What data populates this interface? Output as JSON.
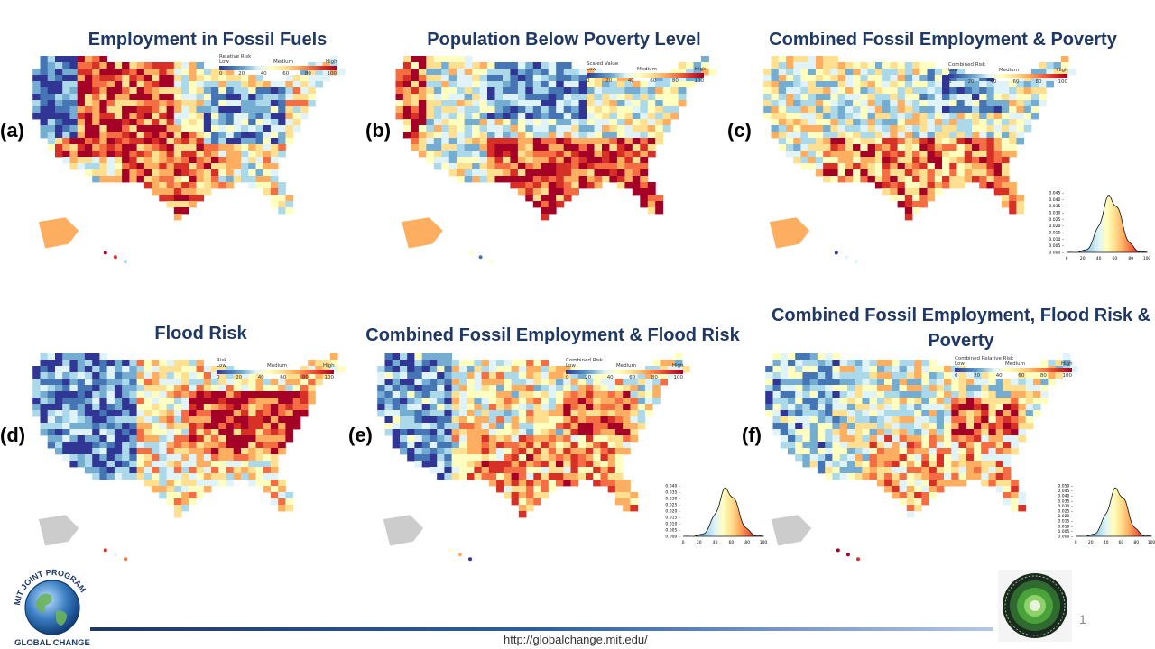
{
  "panels": [
    {
      "letter": "(a)",
      "title": "Employment in Fossil Fuels",
      "legend_title": "Relative Risk",
      "legend_low": "Low",
      "legend_medium": "Medium",
      "legend_high": "High",
      "has_density": false
    },
    {
      "letter": "(b)",
      "title": "Population Below Poverty Level",
      "legend_title": "Scaled Value",
      "legend_low": "Low",
      "legend_medium": "Medium",
      "legend_high": "High",
      "has_density": false
    },
    {
      "letter": "(c)",
      "title": "Combined Fossil Employment & Poverty",
      "legend_title": "Combined Risk",
      "legend_low": "Low",
      "legend_medium": "Medium",
      "legend_high": "High",
      "has_density": true
    },
    {
      "letter": "(d)",
      "title": "Flood Risk",
      "legend_title": "Risk",
      "legend_low": "Low",
      "legend_medium": "Medium",
      "legend_high": "High",
      "has_density": false
    },
    {
      "letter": "(e)",
      "title": "Combined Fossil Employment & Flood Risk",
      "legend_title": "Combined Risk",
      "legend_low": "Low",
      "legend_medium": "Medium",
      "legend_high": "High",
      "has_density": true
    },
    {
      "letter": "(f)",
      "title": "Combined Fossil Employment, Flood Risk & Poverty",
      "legend_title": "Combined Relative Risk",
      "legend_low": "Low",
      "legend_medium": "Medium",
      "legend_high": "High",
      "has_density": true
    }
  ],
  "legend_ticks": [
    "0",
    "20",
    "40",
    "60",
    "80",
    "100"
  ],
  "density_ticks_c": [
    "0.045",
    "0.040",
    "0.035",
    "0.030",
    "0.025",
    "0.020",
    "0.015",
    "0.010",
    "0.005",
    "0.000"
  ],
  "density_ticks_e": [
    "0.040",
    "0.035",
    "0.030",
    "0.025",
    "0.020",
    "0.015",
    "0.010",
    "0.005",
    "0.000"
  ],
  "density_ticks_f": [
    "0.050",
    "0.045",
    "0.040",
    "0.035",
    "0.030",
    "0.025",
    "0.020",
    "0.015",
    "0.010",
    "0.005",
    "0.000"
  ],
  "density_x_ticks": [
    "0",
    "20",
    "40",
    "60",
    "80",
    "100"
  ],
  "footer": {
    "url": "http://globalchange.mit.edu/",
    "page_number": "1",
    "logo_text_top": "MIT JOINT PROGRAM",
    "logo_text_bottom": "GLOBAL CHANGE"
  },
  "colors": {
    "title": "#1f3864",
    "low": "#313695",
    "medium": "#ffffbf",
    "high": "#a50026"
  }
}
